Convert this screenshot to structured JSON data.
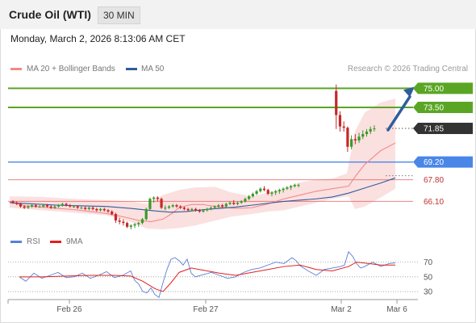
{
  "header": {
    "instrument": "Crude Oil (WTI)",
    "timeframe": "30 MIN"
  },
  "timestamp": "Monday, March 2, 2026 8:13:06 AM CET",
  "legend": [
    {
      "label": "MA 20 + Bollinger Bands",
      "color": "#f28a8a"
    },
    {
      "label": "MA 50",
      "color": "#2f5d9c"
    }
  ],
  "credit": "Research © 2026 Trading Central",
  "rsi_legend": [
    {
      "label": "RSI",
      "color": "#5a7fd6"
    },
    {
      "label": "9MA",
      "color": "#e02020"
    }
  ],
  "colors": {
    "resistance": "#5aa624",
    "pivot": "#4a86e8",
    "support": "#e05050",
    "last": "#333333",
    "up": "#3a9a2a",
    "down": "#c62828",
    "arrow": "#2f5d9c"
  },
  "chart_data": {
    "type": "candlestick",
    "ylim": [
      63.9,
      75.6
    ],
    "rsi_ylim": [
      18,
      86
    ],
    "x_ticks": [
      "Feb 26",
      "Feb 27",
      "Mar 2",
      "Mar 6"
    ],
    "price_levels": [
      {
        "label": "75.00",
        "value": 75.0,
        "role": "resistance"
      },
      {
        "label": "73.50",
        "value": 73.5,
        "role": "resistance"
      },
      {
        "label": "71.85",
        "value": 71.85,
        "role": "last"
      },
      {
        "label": "69.20",
        "value": 69.2,
        "role": "pivot"
      },
      {
        "label": "67.80",
        "value": 67.8,
        "role": "support"
      },
      {
        "label": "66.10",
        "value": 66.1,
        "role": "support"
      }
    ],
    "rsi_levels": [
      70,
      50,
      30
    ],
    "candles": [
      [
        66.1,
        66.2,
        65.9,
        66.0
      ],
      [
        66.0,
        66.1,
        65.8,
        65.9
      ],
      [
        65.9,
        66.0,
        65.6,
        65.7
      ],
      [
        65.7,
        65.8,
        65.5,
        65.6
      ],
      [
        65.6,
        65.8,
        65.5,
        65.7
      ],
      [
        65.7,
        65.9,
        65.6,
        65.8
      ],
      [
        65.8,
        65.9,
        65.6,
        65.7
      ],
      [
        65.7,
        65.8,
        65.6,
        65.7
      ],
      [
        65.7,
        65.9,
        65.6,
        65.8
      ],
      [
        65.8,
        65.9,
        65.6,
        65.7
      ],
      [
        65.7,
        65.8,
        65.5,
        65.6
      ],
      [
        65.6,
        65.8,
        65.5,
        65.7
      ],
      [
        65.7,
        65.9,
        65.6,
        65.8
      ],
      [
        65.8,
        66.0,
        65.7,
        65.9
      ],
      [
        65.9,
        66.0,
        65.7,
        65.8
      ],
      [
        65.8,
        65.9,
        65.6,
        65.7
      ],
      [
        65.7,
        65.8,
        65.6,
        65.7
      ],
      [
        65.7,
        65.8,
        65.5,
        65.6
      ],
      [
        65.6,
        65.7,
        65.5,
        65.6
      ],
      [
        65.6,
        65.7,
        65.4,
        65.5
      ],
      [
        65.5,
        65.7,
        65.4,
        65.6
      ],
      [
        65.6,
        65.7,
        65.4,
        65.5
      ],
      [
        65.5,
        65.6,
        65.3,
        65.4
      ],
      [
        65.4,
        65.6,
        65.3,
        65.5
      ],
      [
        65.5,
        65.6,
        65.3,
        65.4
      ],
      [
        65.4,
        65.5,
        65.2,
        65.3
      ],
      [
        65.3,
        65.4,
        65.0,
        65.1
      ],
      [
        65.1,
        65.2,
        64.4,
        64.6
      ],
      [
        64.6,
        64.8,
        64.3,
        64.5
      ],
      [
        64.5,
        64.7,
        64.2,
        64.4
      ],
      [
        64.4,
        64.5,
        64.0,
        64.1
      ],
      [
        64.1,
        64.3,
        63.9,
        64.2
      ],
      [
        64.2,
        64.4,
        64.0,
        64.3
      ],
      [
        64.3,
        64.5,
        64.1,
        64.4
      ],
      [
        64.4,
        64.8,
        64.3,
        64.7
      ],
      [
        64.7,
        65.6,
        64.6,
        65.5
      ],
      [
        65.5,
        66.4,
        65.4,
        66.3
      ],
      [
        66.3,
        66.5,
        66.0,
        66.4
      ],
      [
        66.4,
        66.5,
        66.1,
        66.3
      ],
      [
        66.3,
        66.4,
        65.5,
        65.6
      ],
      [
        65.6,
        65.8,
        65.4,
        65.6
      ],
      [
        65.6,
        65.8,
        65.5,
        65.7
      ],
      [
        65.7,
        65.9,
        65.6,
        65.8
      ],
      [
        65.8,
        65.9,
        65.6,
        65.7
      ],
      [
        65.7,
        65.8,
        65.5,
        65.6
      ],
      [
        65.6,
        65.7,
        65.4,
        65.5
      ],
      [
        65.5,
        65.6,
        65.3,
        65.4
      ],
      [
        65.4,
        65.6,
        65.3,
        65.5
      ],
      [
        65.5,
        65.6,
        65.3,
        65.4
      ],
      [
        65.4,
        65.5,
        65.2,
        65.3
      ],
      [
        65.3,
        65.5,
        65.2,
        65.4
      ],
      [
        65.4,
        65.6,
        65.3,
        65.5
      ],
      [
        65.5,
        65.7,
        65.4,
        65.6
      ],
      [
        65.6,
        65.8,
        65.5,
        65.7
      ],
      [
        65.7,
        65.9,
        65.6,
        65.8
      ],
      [
        65.8,
        65.9,
        65.6,
        65.7
      ],
      [
        65.7,
        66.0,
        65.6,
        65.9
      ],
      [
        65.9,
        66.1,
        65.8,
        66.0
      ],
      [
        66.0,
        66.2,
        65.8,
        65.9
      ],
      [
        65.9,
        66.1,
        65.8,
        66.0
      ],
      [
        66.0,
        66.2,
        65.9,
        66.1
      ],
      [
        66.1,
        66.4,
        66.0,
        66.3
      ],
      [
        66.3,
        66.6,
        66.2,
        66.5
      ],
      [
        66.5,
        66.8,
        66.4,
        66.7
      ],
      [
        66.7,
        67.0,
        66.6,
        66.9
      ],
      [
        66.9,
        67.2,
        66.8,
        67.1
      ],
      [
        67.1,
        67.3,
        66.9,
        67.0
      ],
      [
        67.0,
        67.1,
        66.6,
        66.7
      ],
      [
        66.7,
        66.9,
        66.5,
        66.8
      ],
      [
        66.8,
        67.0,
        66.6,
        66.9
      ],
      [
        66.9,
        67.1,
        66.7,
        67.0
      ],
      [
        67.0,
        67.2,
        66.8,
        67.1
      ],
      [
        67.1,
        67.3,
        67.0,
        67.2
      ],
      [
        67.2,
        67.4,
        67.0,
        67.3
      ],
      [
        67.3,
        67.5,
        67.2,
        67.4
      ],
      [
        67.4,
        67.5,
        67.2,
        67.4
      ],
      [
        74.8,
        75.3,
        71.8,
        72.9
      ],
      [
        72.9,
        73.2,
        71.6,
        72.0
      ],
      [
        72.0,
        72.4,
        71.6,
        71.9
      ],
      [
        71.9,
        72.0,
        70.0,
        70.4
      ],
      [
        70.4,
        71.3,
        70.2,
        71.0
      ],
      [
        71.0,
        71.4,
        70.6,
        70.9
      ],
      [
        70.9,
        71.5,
        70.7,
        71.2
      ],
      [
        71.2,
        71.7,
        71.0,
        71.4
      ],
      [
        71.4,
        71.8,
        71.2,
        71.6
      ],
      [
        71.6,
        72.0,
        71.4,
        71.8
      ],
      [
        71.8,
        72.1,
        71.6,
        71.85
      ]
    ],
    "ma20": [
      [
        0,
        66.05
      ],
      [
        20,
        65.75
      ],
      [
        40,
        65.65
      ],
      [
        60,
        65.55
      ],
      [
        80,
        65.45
      ],
      [
        100,
        65.3
      ],
      [
        120,
        65.15
      ],
      [
        140,
        64.9
      ],
      [
        160,
        64.6
      ],
      [
        175,
        64.5
      ],
      [
        190,
        64.7
      ],
      [
        200,
        65.1
      ],
      [
        210,
        65.6
      ],
      [
        225,
        65.85
      ],
      [
        240,
        65.85
      ],
      [
        260,
        65.65
      ],
      [
        280,
        65.55
      ],
      [
        300,
        65.6
      ],
      [
        320,
        65.9
      ],
      [
        340,
        66.3
      ],
      [
        360,
        66.6
      ],
      [
        380,
        66.9
      ],
      [
        400,
        67.1
      ],
      [
        420,
        67.3
      ],
      [
        430,
        68.2
      ],
      [
        440,
        69.0
      ],
      [
        460,
        70.1
      ],
      [
        478,
        70.7
      ]
    ],
    "ma50": [
      [
        0,
        66.0
      ],
      [
        30,
        65.9
      ],
      [
        60,
        65.8
      ],
      [
        90,
        65.75
      ],
      [
        120,
        65.7
      ],
      [
        150,
        65.55
      ],
      [
        180,
        65.35
      ],
      [
        200,
        65.25
      ],
      [
        220,
        65.3
      ],
      [
        240,
        65.45
      ],
      [
        260,
        65.55
      ],
      [
        280,
        65.65
      ],
      [
        300,
        65.8
      ],
      [
        320,
        65.95
      ],
      [
        340,
        66.1
      ],
      [
        360,
        66.2
      ],
      [
        380,
        66.3
      ],
      [
        400,
        66.45
      ],
      [
        420,
        66.75
      ],
      [
        440,
        67.15
      ],
      [
        460,
        67.55
      ],
      [
        478,
        67.95
      ]
    ],
    "bb_upper": [
      [
        0,
        66.5
      ],
      [
        40,
        66.45
      ],
      [
        80,
        66.3
      ],
      [
        120,
        66.2
      ],
      [
        150,
        66.1
      ],
      [
        170,
        65.9
      ],
      [
        190,
        66.6
      ],
      [
        210,
        67.0
      ],
      [
        230,
        67.2
      ],
      [
        255,
        67.25
      ],
      [
        275,
        66.8
      ],
      [
        300,
        66.5
      ],
      [
        320,
        66.8
      ],
      [
        340,
        67.1
      ],
      [
        360,
        67.6
      ],
      [
        380,
        67.8
      ],
      [
        400,
        67.9
      ],
      [
        418,
        68.3
      ],
      [
        428,
        71.6
      ],
      [
        440,
        73.1
      ],
      [
        460,
        73.9
      ],
      [
        478,
        74.2
      ]
    ],
    "bb_lower": [
      [
        0,
        65.6
      ],
      [
        40,
        65.4
      ],
      [
        80,
        65.2
      ],
      [
        120,
        65.0
      ],
      [
        150,
        64.5
      ],
      [
        170,
        63.95
      ],
      [
        190,
        63.9
      ],
      [
        210,
        64.0
      ],
      [
        230,
        64.2
      ],
      [
        255,
        64.6
      ],
      [
        275,
        64.9
      ],
      [
        300,
        65.1
      ],
      [
        320,
        65.3
      ],
      [
        340,
        65.4
      ],
      [
        360,
        65.7
      ],
      [
        380,
        66.0
      ],
      [
        400,
        66.3
      ],
      [
        420,
        66.5
      ],
      [
        428,
        65.5
      ],
      [
        440,
        65.7
      ],
      [
        460,
        66.4
      ],
      [
        478,
        67.1
      ]
    ],
    "rsi": [
      [
        12,
        50
      ],
      [
        20,
        44
      ],
      [
        30,
        55
      ],
      [
        40,
        48
      ],
      [
        50,
        52
      ],
      [
        60,
        56
      ],
      [
        70,
        49
      ],
      [
        80,
        50
      ],
      [
        90,
        55
      ],
      [
        100,
        48
      ],
      [
        110,
        52
      ],
      [
        120,
        57
      ],
      [
        130,
        49
      ],
      [
        140,
        52
      ],
      [
        150,
        58
      ],
      [
        155,
        45
      ],
      [
        160,
        40
      ],
      [
        165,
        30
      ],
      [
        170,
        28
      ],
      [
        175,
        35
      ],
      [
        180,
        26
      ],
      [
        185,
        22
      ],
      [
        190,
        42
      ],
      [
        195,
        60
      ],
      [
        200,
        74
      ],
      [
        205,
        76
      ],
      [
        210,
        72
      ],
      [
        215,
        66
      ],
      [
        220,
        74
      ],
      [
        225,
        55
      ],
      [
        230,
        50
      ],
      [
        240,
        53
      ],
      [
        250,
        56
      ],
      [
        260,
        52
      ],
      [
        270,
        48
      ],
      [
        280,
        50
      ],
      [
        290,
        56
      ],
      [
        300,
        60
      ],
      [
        310,
        62
      ],
      [
        320,
        66
      ],
      [
        330,
        70
      ],
      [
        340,
        68
      ],
      [
        350,
        76
      ],
      [
        355,
        72
      ],
      [
        360,
        65
      ],
      [
        370,
        58
      ],
      [
        380,
        52
      ],
      [
        390,
        60
      ],
      [
        400,
        62
      ],
      [
        410,
        64
      ],
      [
        415,
        66
      ],
      [
        420,
        84
      ],
      [
        425,
        78
      ],
      [
        430,
        68
      ],
      [
        435,
        62
      ],
      [
        440,
        64
      ],
      [
        450,
        70
      ],
      [
        460,
        64
      ],
      [
        470,
        68
      ],
      [
        478,
        69
      ]
    ],
    "rsi_ma": [
      [
        12,
        50
      ],
      [
        40,
        50
      ],
      [
        70,
        51
      ],
      [
        100,
        52
      ],
      [
        130,
        52
      ],
      [
        150,
        51
      ],
      [
        165,
        44
      ],
      [
        180,
        34
      ],
      [
        190,
        30
      ],
      [
        200,
        42
      ],
      [
        210,
        56
      ],
      [
        225,
        62
      ],
      [
        240,
        59
      ],
      [
        260,
        55
      ],
      [
        280,
        52
      ],
      [
        300,
        56
      ],
      [
        320,
        60
      ],
      [
        340,
        64
      ],
      [
        360,
        66
      ],
      [
        380,
        60
      ],
      [
        400,
        58
      ],
      [
        420,
        64
      ],
      [
        430,
        70
      ],
      [
        445,
        68
      ],
      [
        460,
        66
      ],
      [
        478,
        66
      ]
    ]
  }
}
